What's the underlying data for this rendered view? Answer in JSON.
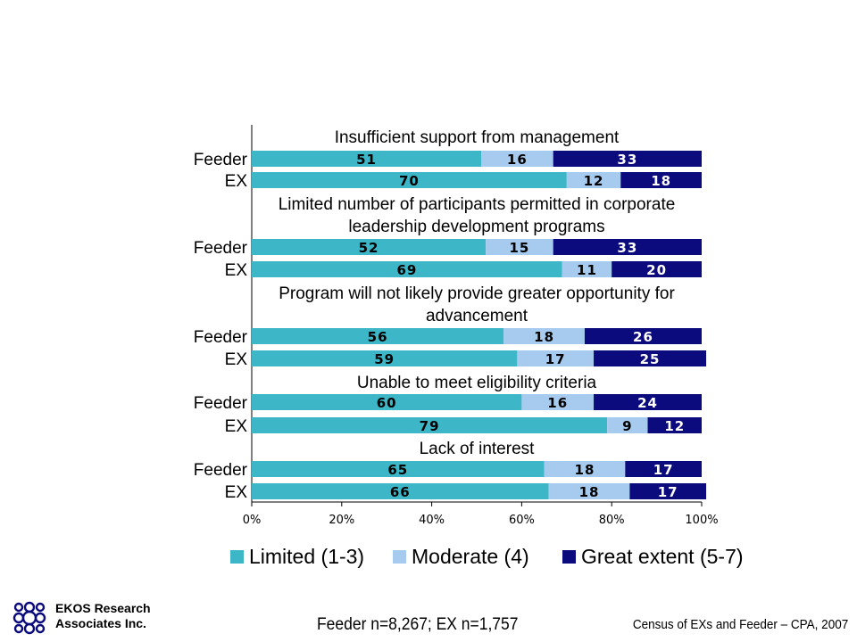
{
  "chart_data": {
    "type": "bar",
    "orientation": "horizontal",
    "stacked": true,
    "categories": [
      "Insufficient support from management",
      "Limited number of participants permitted in corporate leadership development programs",
      "Program will not likely provide greater opportunity for advancement",
      "Unable to meet eligibility criteria",
      "Lack of interest"
    ],
    "category_lines": [
      [
        "Insufficient support from management"
      ],
      [
        "Limited number of participants permitted in corporate",
        "leadership development programs"
      ],
      [
        "Program will not likely provide greater opportunity for",
        "advancement"
      ],
      [
        "Unable to meet eligibility criteria"
      ],
      [
        "Lack of interest"
      ]
    ],
    "groups": [
      "Feeder",
      "EX"
    ],
    "series": [
      {
        "name": "Limited (1-3)",
        "color": "#3DB6C8",
        "values": [
          [
            51,
            70
          ],
          [
            52,
            69
          ],
          [
            56,
            59
          ],
          [
            60,
            79
          ],
          [
            65,
            66
          ]
        ]
      },
      {
        "name": "Moderate (4)",
        "color": "#A6CBEE",
        "values": [
          [
            16,
            12
          ],
          [
            15,
            11
          ],
          [
            18,
            17
          ],
          [
            16,
            9
          ],
          [
            18,
            18
          ]
        ]
      },
      {
        "name": "Great extent (5-7)",
        "color": "#0B0B7E",
        "values": [
          [
            33,
            18
          ],
          [
            33,
            20
          ],
          [
            26,
            25
          ],
          [
            24,
            12
          ],
          [
            17,
            17
          ]
        ]
      }
    ],
    "xlim": [
      0,
      100
    ],
    "xticks": [
      "0%",
      "20%",
      "40%",
      "60%",
      "80%",
      "100%"
    ],
    "legend_position": "bottom"
  },
  "footer": {
    "sample": "Feeder n=8,267; EX n=1,757",
    "source": "Census of EXs and Feeder – CPA, 2007",
    "company": "EKOS Research",
    "company_line2": "Associates Inc."
  },
  "colors": {
    "logo": "#0B0B7E"
  },
  "icons": {
    "logo": "ekos-logo-icon"
  }
}
